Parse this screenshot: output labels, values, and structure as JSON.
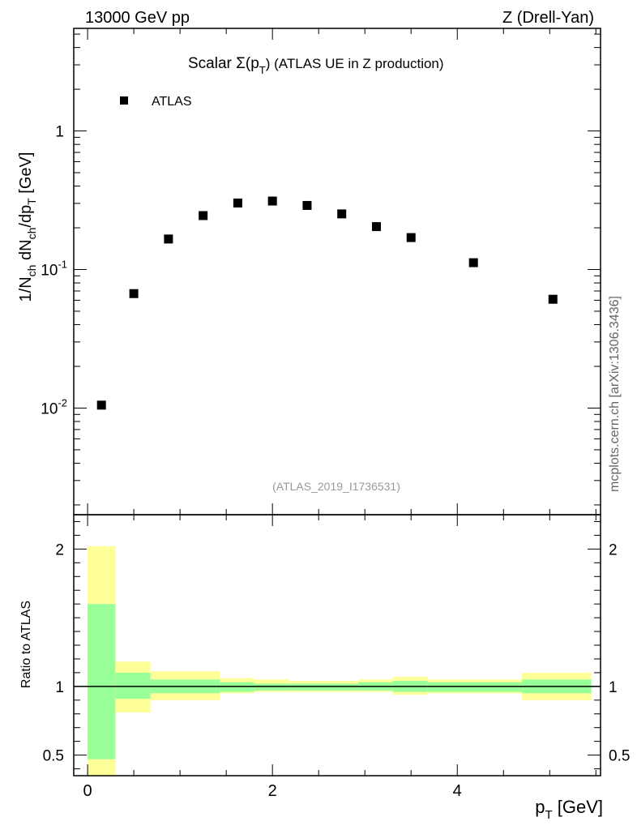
{
  "header": {
    "left": "13000 GeV pp",
    "right": "Z (Drell-Yan)"
  },
  "plot_title": {
    "main": "Scalar Σ(p",
    "sub": "T",
    "tail": ") (ATLAS UE in Z production)"
  },
  "analysis_label": "(ATLAS_2019_I1736531)",
  "side_label": "mcplots.cern.ch [arXiv:1306.3436]",
  "legend": {
    "marker_label": "ATLAS"
  },
  "ylabel_main": "1/N_ch dN_ch/dp_T [GeV]",
  "ylabel_ratio": "Ratio to ATLAS",
  "xlabel": "p_T [GeV]",
  "colors": {
    "band_inner": "#99ff99",
    "band_outer": "#ffff99",
    "marker": "#000000"
  },
  "chart_data": [
    {
      "type": "scatter",
      "panel": "main",
      "yscale": "log",
      "xlim": [
        -0.15,
        5.55
      ],
      "ylim": [
        0.0017,
        5.5
      ],
      "x_ticks": [
        0,
        2,
        4
      ],
      "y_tick_labels": [
        "10^-2",
        "10^-1",
        "1"
      ],
      "series": [
        {
          "name": "ATLAS",
          "x": [
            0.15,
            0.5,
            0.875,
            1.25,
            1.625,
            2.0,
            2.375,
            2.75,
            3.125,
            3.5,
            4.175,
            5.035
          ],
          "values": [
            0.0105,
            0.067,
            0.166,
            0.245,
            0.302,
            0.312,
            0.29,
            0.252,
            0.204,
            0.17,
            0.112,
            0.061
          ]
        }
      ]
    },
    {
      "type": "area",
      "panel": "ratio",
      "xlim": [
        -0.15,
        5.55
      ],
      "ylim": [
        0.35,
        2.25
      ],
      "x_ticks": [
        0,
        2,
        4
      ],
      "y_ticks": [
        0.5,
        1,
        2
      ],
      "reference_line": 1,
      "bins": [
        {
          "lo": 0.0,
          "hi": 0.3,
          "inner": [
            0.47,
            1.6
          ],
          "outer": [
            0.35,
            2.02
          ]
        },
        {
          "lo": 0.3,
          "hi": 0.68,
          "inner": [
            0.91,
            1.1
          ],
          "outer": [
            0.81,
            1.18
          ]
        },
        {
          "lo": 0.68,
          "hi": 1.43,
          "inner": [
            0.95,
            1.05
          ],
          "outer": [
            0.9,
            1.11
          ]
        },
        {
          "lo": 1.43,
          "hi": 1.8,
          "inner": [
            0.96,
            1.03
          ],
          "outer": [
            0.95,
            1.06
          ]
        },
        {
          "lo": 1.8,
          "hi": 2.18,
          "inner": [
            0.97,
            1.02
          ],
          "outer": [
            0.96,
            1.05
          ]
        },
        {
          "lo": 2.18,
          "hi": 2.93,
          "inner": [
            0.97,
            1.02
          ],
          "outer": [
            0.96,
            1.04
          ]
        },
        {
          "lo": 2.93,
          "hi": 3.3,
          "inner": [
            0.97,
            1.03
          ],
          "outer": [
            0.96,
            1.05
          ]
        },
        {
          "lo": 3.3,
          "hi": 3.68,
          "inner": [
            0.96,
            1.04
          ],
          "outer": [
            0.94,
            1.07
          ]
        },
        {
          "lo": 3.68,
          "hi": 4.7,
          "inner": [
            0.96,
            1.03
          ],
          "outer": [
            0.95,
            1.05
          ]
        },
        {
          "lo": 4.7,
          "hi": 5.45,
          "inner": [
            0.95,
            1.05
          ],
          "outer": [
            0.9,
            1.1
          ]
        }
      ]
    }
  ]
}
